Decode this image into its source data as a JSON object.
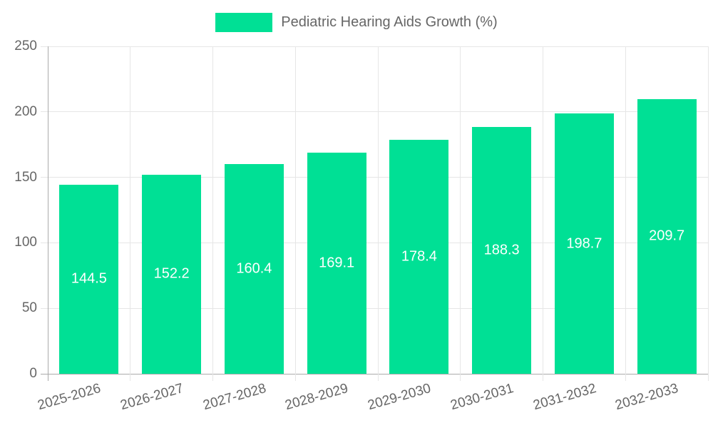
{
  "chart_data": {
    "type": "bar",
    "title": "",
    "series_name": "Pediatric Hearing Aids Growth (%)",
    "categories": [
      "2025-2026",
      "2026-2027",
      "2027-2028",
      "2028-2029",
      "2029-2030",
      "2030-2031",
      "2031-2032",
      "2032-2033"
    ],
    "values": [
      144.5,
      152.2,
      160.4,
      169.1,
      178.4,
      188.3,
      198.7,
      209.7
    ],
    "value_labels": [
      "144.5",
      "152.2",
      "160.4",
      "169.1",
      "178.4",
      "188.3",
      "198.7",
      "209.7"
    ],
    "xlabel": "",
    "ylabel": "",
    "ylim": [
      0,
      250
    ],
    "yticks": [
      0,
      50,
      100,
      150,
      200,
      250
    ],
    "ytick_labels": [
      "0",
      "50",
      "100",
      "150",
      "200",
      "250"
    ],
    "grid": true,
    "legend_position": "top",
    "colors": {
      "bar": "#00E095",
      "bar_label": "#ffffff",
      "axis_text": "#666666",
      "gridline": "#e6e6e6",
      "axis_line": "#ababab"
    }
  }
}
